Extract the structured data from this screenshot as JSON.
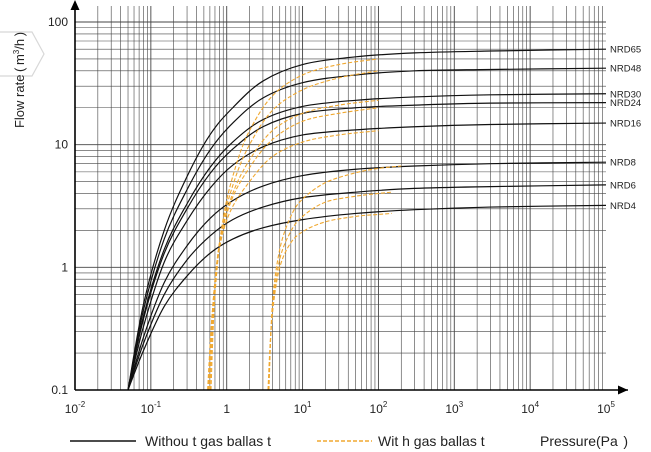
{
  "chart_data": {
    "type": "line",
    "x_scale": "log",
    "y_scale": "log",
    "xlim": [
      0.01,
      100000
    ],
    "ylim": [
      0.1,
      100
    ],
    "x_ticks": [
      {
        "base": "10",
        "exp": "-2"
      },
      {
        "base": "10",
        "exp": "-1"
      },
      {
        "base": "1",
        "exp": ""
      },
      {
        "base": "10",
        "exp": "1"
      },
      {
        "base": "10",
        "exp": "2"
      },
      {
        "base": "10",
        "exp": "3"
      },
      {
        "base": "10",
        "exp": "4"
      },
      {
        "base": "10",
        "exp": "5"
      }
    ],
    "y_ticks": [
      "0.1",
      "1",
      "10",
      "100"
    ],
    "ylabel": {
      "main": "Flow rate ( m",
      "sup": "3",
      "tail": "/h )"
    },
    "xlabel": "Pressure(Pa  )",
    "grid": true,
    "legend_position": "bottom",
    "legend": {
      "solid": "Withou t gas ballas t",
      "dashed": "Wit h gas ballas t"
    },
    "colors": {
      "solid": "#111111",
      "dashed": "#f0a830",
      "grid": "#444444"
    },
    "series": [
      {
        "name": "NRD65",
        "style": "solid",
        "x": [
          0.05,
          0.08,
          0.15,
          0.3,
          0.6,
          1.2,
          3,
          10,
          50,
          300,
          3000,
          100000
        ],
        "y": [
          0.1,
          0.5,
          2,
          5.5,
          12,
          20,
          33,
          45,
          52,
          56,
          58,
          60
        ]
      },
      {
        "name": "NRD48",
        "style": "solid",
        "x": [
          0.05,
          0.08,
          0.15,
          0.3,
          0.6,
          1.2,
          3,
          10,
          50,
          300,
          3000,
          100000
        ],
        "y": [
          0.1,
          0.45,
          1.7,
          4.3,
          9,
          15,
          24,
          32,
          37,
          40,
          41,
          42
        ]
      },
      {
        "name": "NRD30",
        "style": "solid",
        "x": [
          0.05,
          0.08,
          0.15,
          0.3,
          0.6,
          1.2,
          3,
          10,
          50,
          300,
          3000,
          100000
        ],
        "y": [
          0.1,
          0.4,
          1.4,
          3.3,
          6.5,
          10.5,
          16,
          20.5,
          23,
          24.5,
          25.5,
          26
        ]
      },
      {
        "name": "NRD24",
        "style": "solid",
        "x": [
          0.05,
          0.08,
          0.15,
          0.3,
          0.6,
          1.2,
          3,
          10,
          50,
          300,
          3000,
          100000
        ],
        "y": [
          0.1,
          0.38,
          1.3,
          3,
          5.8,
          9.2,
          14,
          18,
          20,
          21,
          21.8,
          22
        ]
      },
      {
        "name": "NRD16",
        "style": "solid",
        "x": [
          0.05,
          0.08,
          0.15,
          0.3,
          0.6,
          1.2,
          3,
          10,
          50,
          300,
          3000,
          100000
        ],
        "y": [
          0.1,
          0.33,
          1.1,
          2.4,
          4.4,
          6.8,
          9.6,
          12,
          13.2,
          14,
          14.6,
          15
        ]
      },
      {
        "name": "NRD8",
        "style": "solid",
        "x": [
          0.05,
          0.08,
          0.15,
          0.3,
          0.6,
          1.2,
          3,
          10,
          50,
          300,
          3000,
          100000
        ],
        "y": [
          0.1,
          0.27,
          0.75,
          1.5,
          2.5,
          3.5,
          4.6,
          5.6,
          6.3,
          6.7,
          7,
          7.2
        ]
      },
      {
        "name": "NRD6",
        "style": "solid",
        "x": [
          0.05,
          0.08,
          0.15,
          0.3,
          0.6,
          1.2,
          3,
          10,
          50,
          300,
          3000,
          100000
        ],
        "y": [
          0.1,
          0.24,
          0.6,
          1.15,
          1.8,
          2.45,
          3.1,
          3.7,
          4.1,
          4.4,
          4.55,
          4.7
        ]
      },
      {
        "name": "NRD4",
        "style": "solid",
        "x": [
          0.05,
          0.08,
          0.15,
          0.3,
          0.6,
          1.2,
          3,
          10,
          50,
          300,
          3000,
          100000
        ],
        "y": [
          0.1,
          0.21,
          0.48,
          0.85,
          1.3,
          1.7,
          2.1,
          2.45,
          2.75,
          2.95,
          3.1,
          3.2
        ]
      },
      {
        "name": "NRD65",
        "style": "dashed",
        "x": [
          0.62,
          0.7,
          0.9,
          1.3,
          2,
          4,
          10,
          30,
          100
        ],
        "y": [
          0.1,
          0.6,
          2.5,
          6.5,
          13,
          25,
          37,
          45,
          50
        ]
      },
      {
        "name": "NRD48",
        "style": "dashed",
        "x": [
          0.6,
          0.68,
          0.85,
          1.25,
          2,
          4,
          10,
          30,
          100
        ],
        "y": [
          0.1,
          0.55,
          2,
          5,
          10,
          19,
          28,
          35,
          40
        ]
      },
      {
        "name": "NRD30",
        "style": "dashed",
        "x": [
          0.58,
          0.66,
          0.82,
          1.2,
          2,
          4,
          10,
          30,
          100
        ],
        "y": [
          0.1,
          0.5,
          1.7,
          4,
          7.5,
          13,
          18,
          21,
          23
        ]
      },
      {
        "name": "NRD24",
        "style": "dashed",
        "x": [
          0.57,
          0.65,
          0.8,
          1.15,
          2,
          4,
          10,
          30,
          100
        ],
        "y": [
          0.1,
          0.45,
          1.5,
          3.5,
          6.5,
          11,
          15.5,
          18,
          20
        ]
      },
      {
        "name": "NRD16",
        "style": "dashed",
        "x": [
          0.56,
          0.64,
          0.78,
          1.1,
          2,
          4,
          10,
          30,
          100
        ],
        "y": [
          0.1,
          0.4,
          1.3,
          2.8,
          5,
          8,
          10.5,
          12,
          13
        ]
      },
      {
        "name": "NRD8",
        "style": "dashed",
        "x": [
          3.6,
          4,
          5,
          7,
          10,
          20,
          50,
          100,
          200
        ],
        "y": [
          0.1,
          0.5,
          1.4,
          2.6,
          3.6,
          4.9,
          5.9,
          6.4,
          6.7
        ]
      },
      {
        "name": "NRD6",
        "style": "dashed",
        "x": [
          3.55,
          3.95,
          4.9,
          6.8,
          10,
          20,
          50,
          100,
          150
        ],
        "y": [
          0.1,
          0.4,
          1.1,
          1.9,
          2.6,
          3.4,
          3.8,
          4.0,
          4.1
        ]
      },
      {
        "name": "NRD4",
        "style": "dashed",
        "x": [
          3.5,
          3.9,
          4.8,
          6.6,
          10,
          20,
          50,
          100,
          150
        ],
        "y": [
          0.1,
          0.35,
          0.9,
          1.5,
          1.95,
          2.35,
          2.6,
          2.7,
          2.75
        ]
      }
    ],
    "curve_labels": [
      {
        "name": "NRD65",
        "y": 60
      },
      {
        "name": "NRD48",
        "y": 42
      },
      {
        "name": "NRD30",
        "y": 26
      },
      {
        "name": "NRD24",
        "y": 22
      },
      {
        "name": "NRD16",
        "y": 15
      },
      {
        "name": "NRD8",
        "y": 7.2
      },
      {
        "name": "NRD6",
        "y": 4.7
      },
      {
        "name": "NRD4",
        "y": 3.2
      }
    ]
  }
}
